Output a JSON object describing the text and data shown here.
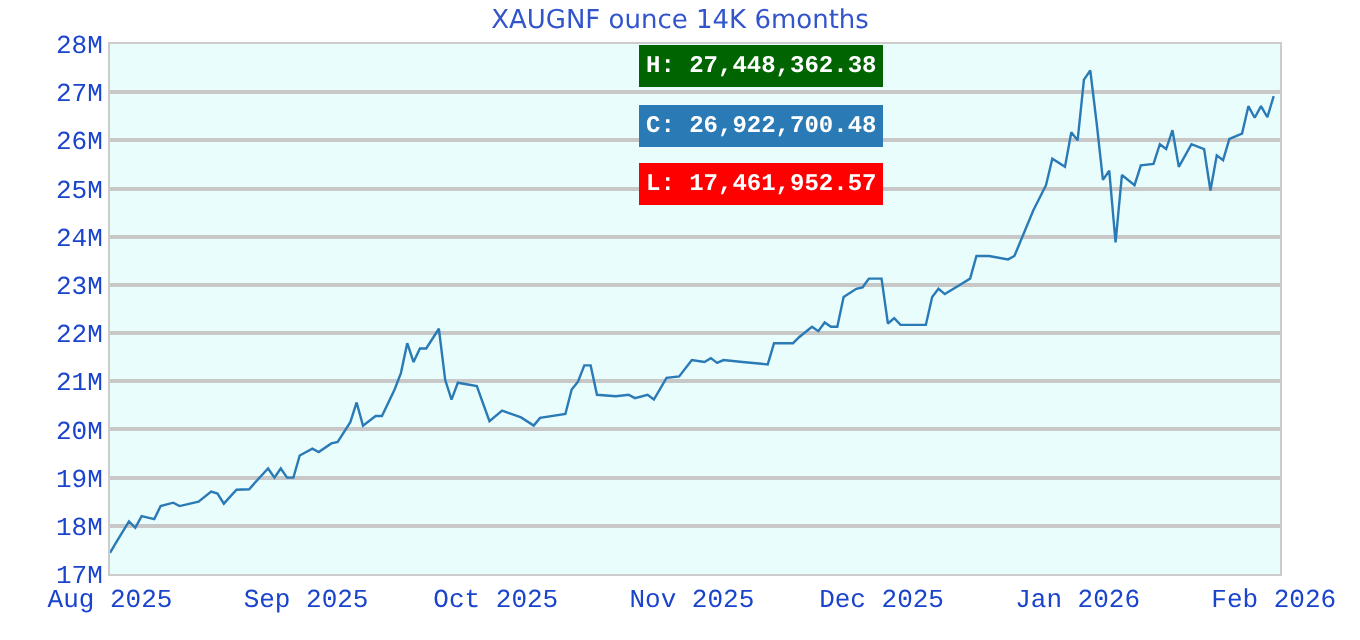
{
  "chart_data": {
    "type": "line",
    "title": "XAUGNF ounce 14K 6months",
    "x": [
      "2025-08-01",
      "2025-08-02",
      "2025-08-04",
      "2025-08-05",
      "2025-08-06",
      "2025-08-08",
      "2025-08-09",
      "2025-08-11",
      "2025-08-12",
      "2025-08-15",
      "2025-08-17",
      "2025-08-18",
      "2025-08-19",
      "2025-08-21",
      "2025-08-23",
      "2025-08-25",
      "2025-08-26",
      "2025-08-27",
      "2025-08-28",
      "2025-08-29",
      "2025-08-30",
      "2025-08-31",
      "2025-09-02",
      "2025-09-03",
      "2025-09-05",
      "2025-09-06",
      "2025-09-08",
      "2025-09-09",
      "2025-09-10",
      "2025-09-12",
      "2025-09-13",
      "2025-09-15",
      "2025-09-16",
      "2025-09-17",
      "2025-09-18",
      "2025-09-19",
      "2025-09-20",
      "2025-09-22",
      "2025-09-23",
      "2025-09-24",
      "2025-09-25",
      "2025-09-28",
      "2025-09-30",
      "2025-10-02",
      "2025-10-05",
      "2025-10-07",
      "2025-10-08",
      "2025-10-12",
      "2025-10-13",
      "2025-10-14",
      "2025-10-15",
      "2025-10-16",
      "2025-10-17",
      "2025-10-20",
      "2025-10-22",
      "2025-10-23",
      "2025-10-25",
      "2025-10-26",
      "2025-10-28",
      "2025-10-30",
      "2025-11-01",
      "2025-11-03",
      "2025-11-04",
      "2025-11-05",
      "2025-11-06",
      "2025-11-09",
      "2025-11-13",
      "2025-11-14",
      "2025-11-17",
      "2025-11-18",
      "2025-11-20",
      "2025-11-21",
      "2025-11-22",
      "2025-11-23",
      "2025-11-24",
      "2025-11-25",
      "2025-11-27",
      "2025-11-28",
      "2025-11-29",
      "2025-12-01",
      "2025-12-02",
      "2025-12-03",
      "2025-12-04",
      "2025-12-08",
      "2025-12-09",
      "2025-12-10",
      "2025-12-11",
      "2025-12-14",
      "2025-12-15",
      "2025-12-16",
      "2025-12-18",
      "2025-12-21",
      "2025-12-22",
      "2025-12-25",
      "2025-12-27",
      "2025-12-28",
      "2025-12-30",
      "2025-12-31",
      "2026-01-01",
      "2026-01-02",
      "2026-01-03",
      "2026-01-04",
      "2026-01-05",
      "2026-01-06",
      "2026-01-07",
      "2026-01-08",
      "2026-01-10",
      "2026-01-11",
      "2026-01-13",
      "2026-01-14",
      "2026-01-15",
      "2026-01-16",
      "2026-01-17",
      "2026-01-19",
      "2026-01-21",
      "2026-01-22",
      "2026-01-23",
      "2026-01-24",
      "2026-01-25",
      "2026-01-27",
      "2026-01-28",
      "2026-01-29",
      "2026-01-30",
      "2026-01-31",
      "2026-02-01"
    ],
    "series": [
      {
        "color": "#2a7ab5",
        "values": [
          17440000,
          17660000,
          18090000,
          17960000,
          18200000,
          18140000,
          18410000,
          18480000,
          18410000,
          18500000,
          18710000,
          18670000,
          18460000,
          18750000,
          18760000,
          19050000,
          19190000,
          19000000,
          19190000,
          19000000,
          19000000,
          19460000,
          19600000,
          19530000,
          19710000,
          19740000,
          20150000,
          20560000,
          20080000,
          20280000,
          20280000,
          20830000,
          21170000,
          21790000,
          21400000,
          21680000,
          21680000,
          22090000,
          21030000,
          20620000,
          20970000,
          20900000,
          20170000,
          20390000,
          20250000,
          20080000,
          20240000,
          20320000,
          20830000,
          20990000,
          21330000,
          21330000,
          20720000,
          20690000,
          20720000,
          20650000,
          20720000,
          20620000,
          21070000,
          21100000,
          21440000,
          21400000,
          21480000,
          21380000,
          21440000,
          21400000,
          21350000,
          21790000,
          21790000,
          21920000,
          22130000,
          22040000,
          22220000,
          22130000,
          22130000,
          22750000,
          22920000,
          22950000,
          23130000,
          23130000,
          22200000,
          22310000,
          22170000,
          22170000,
          22750000,
          22920000,
          22810000,
          23050000,
          23130000,
          23600000,
          23600000,
          23530000,
          23600000,
          24550000,
          25070000,
          25620000,
          25450000,
          26170000,
          26000000,
          27260000,
          27450000,
          26370000,
          25180000,
          25370000,
          23880000,
          25280000,
          25070000,
          25480000,
          25510000,
          25920000,
          25820000,
          26210000,
          25450000,
          25920000,
          25820000,
          24960000,
          25690000,
          25590000,
          26030000,
          26140000,
          26710000,
          26470000,
          26710000,
          26480000,
          26920000
        ]
      }
    ],
    "xlim": [
      "2025-08-01",
      "2026-02-02"
    ],
    "xticks": [
      {
        "value": "2025-08-01",
        "label": "Aug 2025"
      },
      {
        "value": "2025-09-01",
        "label": "Sep 2025"
      },
      {
        "value": "2025-10-01",
        "label": "Oct 2025"
      },
      {
        "value": "2025-11-01",
        "label": "Nov 2025"
      },
      {
        "value": "2025-12-01",
        "label": "Dec 2025"
      },
      {
        "value": "2026-01-01",
        "label": "Jan 2026"
      },
      {
        "value": "2026-02-01",
        "label": "Feb 2026"
      }
    ],
    "ylim": [
      17000000,
      28000000
    ],
    "yticks": [
      {
        "value": 17000000,
        "label": "17M"
      },
      {
        "value": 18000000,
        "label": "18M"
      },
      {
        "value": 19000000,
        "label": "19M"
      },
      {
        "value": 20000000,
        "label": "20M"
      },
      {
        "value": 21000000,
        "label": "21M"
      },
      {
        "value": 22000000,
        "label": "22M"
      },
      {
        "value": 23000000,
        "label": "23M"
      },
      {
        "value": 24000000,
        "label": "24M"
      },
      {
        "value": 25000000,
        "label": "25M"
      },
      {
        "value": 26000000,
        "label": "26M"
      },
      {
        "value": 27000000,
        "label": "27M"
      },
      {
        "value": 28000000,
        "label": "28M"
      }
    ],
    "grid": "y",
    "line_style": "solid",
    "annotations": [
      "H: 27,448,362.38",
      "C: 26,922,700.48",
      "L: 17,461,952.57"
    ]
  }
}
